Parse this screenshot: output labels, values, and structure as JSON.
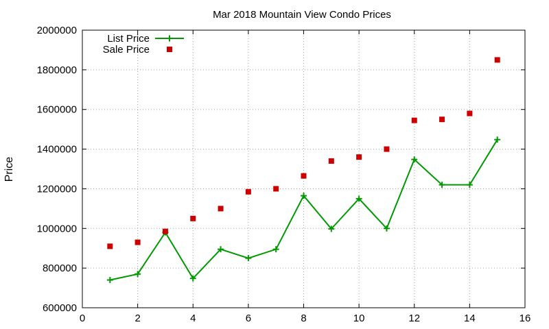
{
  "chart_data": {
    "type": "line",
    "title": "Mar 2018 Mountain View Condo Prices",
    "xlabel": "",
    "ylabel": "Price",
    "xlim": [
      0,
      16
    ],
    "ylim": [
      600000,
      2000000
    ],
    "x_ticks": [
      "0",
      "2",
      "4",
      "6",
      "8",
      "10",
      "12",
      "14",
      "16"
    ],
    "y_ticks": [
      "600000",
      "800000",
      "1000000",
      "1200000",
      "1400000",
      "1600000",
      "1800000",
      "2000000"
    ],
    "grid": true,
    "legend_position": "top-left",
    "series": [
      {
        "name": "List Price",
        "style": "line+plus",
        "color": "#009900",
        "x": [
          1,
          2,
          3,
          4,
          5,
          6,
          7,
          8,
          9,
          10,
          11,
          12,
          13,
          14,
          15
        ],
        "values": [
          740000,
          770000,
          980000,
          748000,
          895000,
          850000,
          895000,
          1165000,
          998000,
          1150000,
          1000000,
          1348000,
          1220000,
          1220000,
          1448000
        ]
      },
      {
        "name": "Sale Price",
        "style": "square-points",
        "color": "#cc0000",
        "x": [
          1,
          2,
          3,
          4,
          5,
          6,
          7,
          8,
          9,
          10,
          11,
          12,
          13,
          14,
          15
        ],
        "values": [
          910000,
          930000,
          985000,
          1050000,
          1100000,
          1185000,
          1200000,
          1265000,
          1340000,
          1360000,
          1400000,
          1545000,
          1550000,
          1580000,
          1850000
        ]
      }
    ]
  }
}
